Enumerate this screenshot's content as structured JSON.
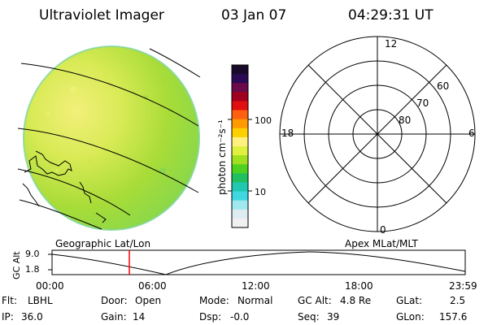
{
  "header": {
    "instrument": "Ultraviolet Imager",
    "date": "03 Jan 07",
    "time": "04:29:31 UT"
  },
  "colorbar": {
    "unit_label": "photon cm⁻²s⁻¹",
    "ticks": [
      "100",
      "10"
    ],
    "colors": [
      "#1a0a2a",
      "#2a0a55",
      "#6a0a4a",
      "#a00020",
      "#e01010",
      "#ff6010",
      "#ff9a00",
      "#ffd000",
      "#fff080",
      "#e0f040",
      "#a0e020",
      "#50d020",
      "#20c060",
      "#20c8b0",
      "#40d8e0",
      "#a0e8f0",
      "#dcecf0",
      "#f0f0f0"
    ]
  },
  "image_panel": {
    "disk_color": "#b8e03a",
    "bright_color": "#f2f07a"
  },
  "polar_plot": {
    "mlt_labels": {
      "top": "12",
      "bottom": "0",
      "left": "18",
      "right": "6"
    },
    "lat_labels": [
      "60",
      "70",
      "80"
    ]
  },
  "timeline": {
    "left_title": "Geographic Lat/Lon",
    "right_title": "Apex MLat/MLT",
    "axis_label": "GC Alt",
    "y_ticks": [
      "9.0",
      "1.8"
    ],
    "x_ticks": [
      "00:00",
      "06:00",
      "12:00",
      "18:00",
      "23:59"
    ],
    "marker_time_hours": 4.49,
    "marker_color": "#ff0000"
  },
  "status": {
    "row1": [
      {
        "label": "Flt:",
        "value": "LBHL"
      },
      {
        "label": "Door:",
        "value": "Open"
      },
      {
        "label": "Mode:",
        "value": "Normal"
      },
      {
        "label": "GC Alt:",
        "value": "4.8 Re"
      },
      {
        "label": "GLat:",
        "value": "2.5"
      }
    ],
    "row2": [
      {
        "label": "IP:",
        "value": "36.0"
      },
      {
        "label": "Gain:",
        "value": "14"
      },
      {
        "label": "Dsp:",
        "value": "-0.0"
      },
      {
        "label": "Seq:",
        "value": "39"
      },
      {
        "label": "GLon:",
        "value": "157.6"
      }
    ]
  }
}
